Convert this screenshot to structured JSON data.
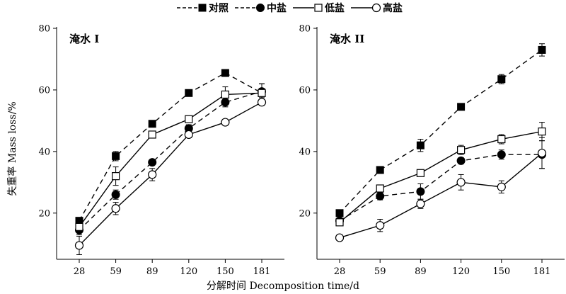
{
  "chart_data": {
    "type": "line",
    "x": [
      28,
      59,
      89,
      120,
      150,
      181
    ],
    "x_tick_labels": [
      "28",
      "59",
      "89",
      "120",
      "150",
      "181"
    ],
    "xlabel": "分解时间 Decomposition time/d",
    "ylabel": "失重率 Mass loss/%",
    "ylim": [
      5,
      80
    ],
    "yticks": [
      20,
      40,
      60,
      80
    ],
    "grid": false,
    "legend_position": "top",
    "legend": [
      {
        "name": "对照",
        "marker": "filled-square",
        "line": "dashed"
      },
      {
        "name": "中盐",
        "marker": "filled-circle",
        "line": "dashed"
      },
      {
        "name": "低盐",
        "marker": "open-square",
        "line": "solid"
      },
      {
        "name": "高盐",
        "marker": "open-circle",
        "line": "solid"
      }
    ],
    "panels": [
      {
        "title": "淹水 I",
        "series": [
          {
            "name": "对照",
            "values": [
              17.5,
              38.5,
              49,
              59,
              65.5,
              59
            ],
            "errors": [
              1,
              1.5,
              0.8,
              0.8,
              0.6,
              1.5
            ]
          },
          {
            "name": "中盐",
            "values": [
              14.5,
              26,
              36.5,
              47.5,
              56,
              59.5
            ],
            "errors": [
              1.5,
              1.5,
              0.8,
              1.2,
              1.5,
              2.5
            ]
          },
          {
            "name": "低盐",
            "values": [
              15.5,
              32,
              45.5,
              50.5,
              58.5,
              59
            ],
            "errors": [
              1.2,
              3,
              1,
              1,
              2.5,
              3
            ]
          },
          {
            "name": "高盐",
            "values": [
              9.5,
              21.5,
              32.5,
              45.5,
              49.5,
              56
            ],
            "errors": [
              3,
              2,
              2,
              1,
              0.8,
              1
            ]
          }
        ]
      },
      {
        "title": "淹水 II",
        "series": [
          {
            "name": "对照",
            "values": [
              20,
              34,
              42,
              54.5,
              63.5,
              73
            ],
            "errors": [
              1,
              1,
              2,
              0.8,
              1.5,
              2
            ]
          },
          {
            "name": "中盐",
            "values": [
              17.5,
              25.5,
              27,
              37,
              39,
              39
            ],
            "errors": [
              1.5,
              1.2,
              2.5,
              1,
              1.5,
              4.5
            ]
          },
          {
            "name": "低盐",
            "values": [
              17,
              28,
              33,
              40.5,
              44,
              46.5
            ],
            "errors": [
              1,
              1,
              1,
              1.5,
              1.5,
              3
            ]
          },
          {
            "name": "高盐",
            "values": [
              12,
              16,
              23,
              30,
              28.5,
              39.5
            ],
            "errors": [
              0.8,
              2,
              1.5,
              2.5,
              2,
              5
            ]
          }
        ]
      }
    ]
  }
}
